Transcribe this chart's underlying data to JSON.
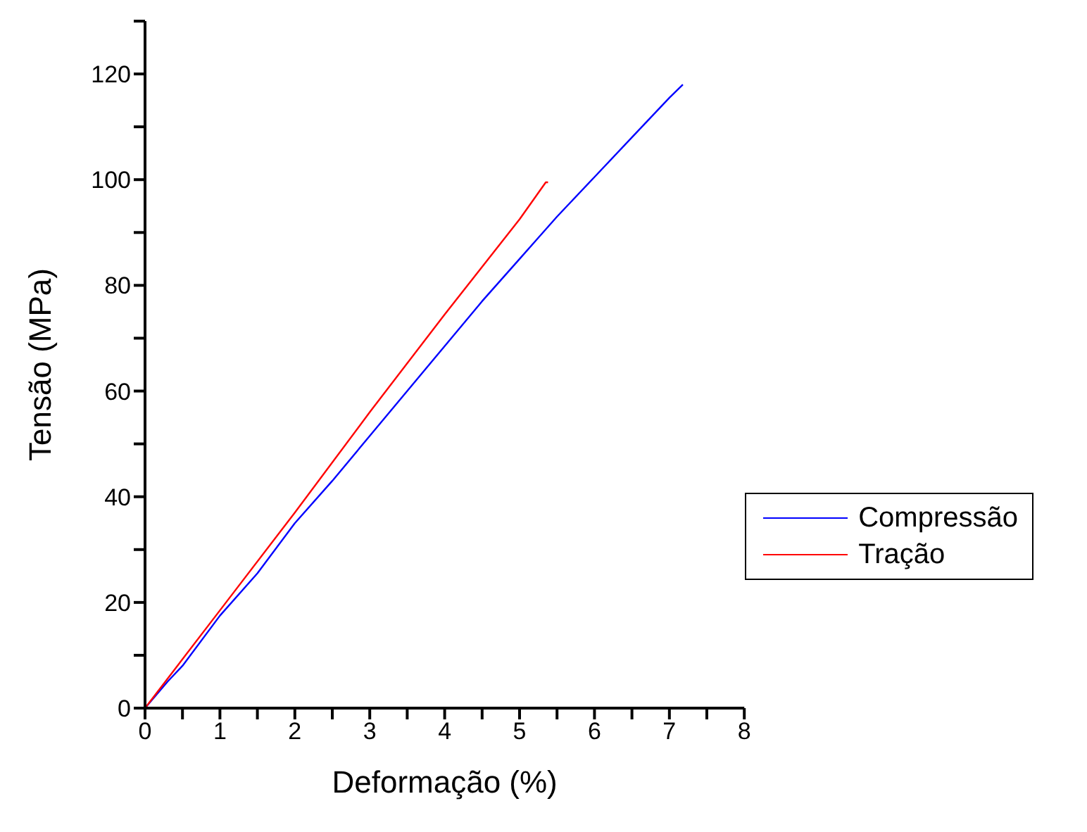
{
  "chart_data": {
    "type": "line",
    "xlabel": "Deformação (%)",
    "ylabel": "Tensão (MPa)",
    "xlim": [
      0,
      8
    ],
    "ylim": [
      0,
      130
    ],
    "xticks": [
      0,
      {
        "value": 0.5,
        "label": null
      },
      1,
      {
        "value": 1.5,
        "label": null
      },
      2,
      {
        "value": 2.5,
        "label": null
      },
      3,
      {
        "value": 3.5,
        "label": null
      },
      4,
      {
        "value": 4.5,
        "label": null
      },
      5,
      {
        "value": 5.5,
        "label": null
      },
      6,
      {
        "value": 6.5,
        "label": null
      },
      7,
      {
        "value": 7.5,
        "label": null
      },
      8
    ],
    "yticks": [
      0,
      {
        "value": 10,
        "label": null
      },
      20,
      {
        "value": 30,
        "label": null
      },
      40,
      {
        "value": 50,
        "label": null
      },
      60,
      {
        "value": 70,
        "label": null
      },
      80,
      {
        "value": 90,
        "label": null
      },
      100,
      {
        "value": 110,
        "label": null
      },
      120,
      {
        "value": 130,
        "label": null
      }
    ],
    "grid": false,
    "legend": "right",
    "marker": "none",
    "line_style": "solid",
    "series": [
      {
        "name": "Compressão",
        "color": "#0000ff",
        "x": [
          0,
          0.3,
          0.5,
          1,
          1.5,
          2,
          2.5,
          3,
          3.5,
          4,
          4.5,
          5,
          5.5,
          6,
          6.5,
          7,
          7.18
        ],
        "values": [
          0,
          5,
          8,
          17.5,
          25.5,
          35,
          43,
          51.5,
          60,
          68.5,
          77,
          85,
          93,
          100.5,
          108,
          115.5,
          118
        ]
      },
      {
        "name": "Tração",
        "color": "#ff0000",
        "x": [
          0,
          1,
          2,
          3,
          4,
          5,
          5.35,
          5.38
        ],
        "values": [
          0,
          18.5,
          37,
          56,
          74.5,
          92.5,
          99.5,
          99.5
        ]
      }
    ]
  }
}
